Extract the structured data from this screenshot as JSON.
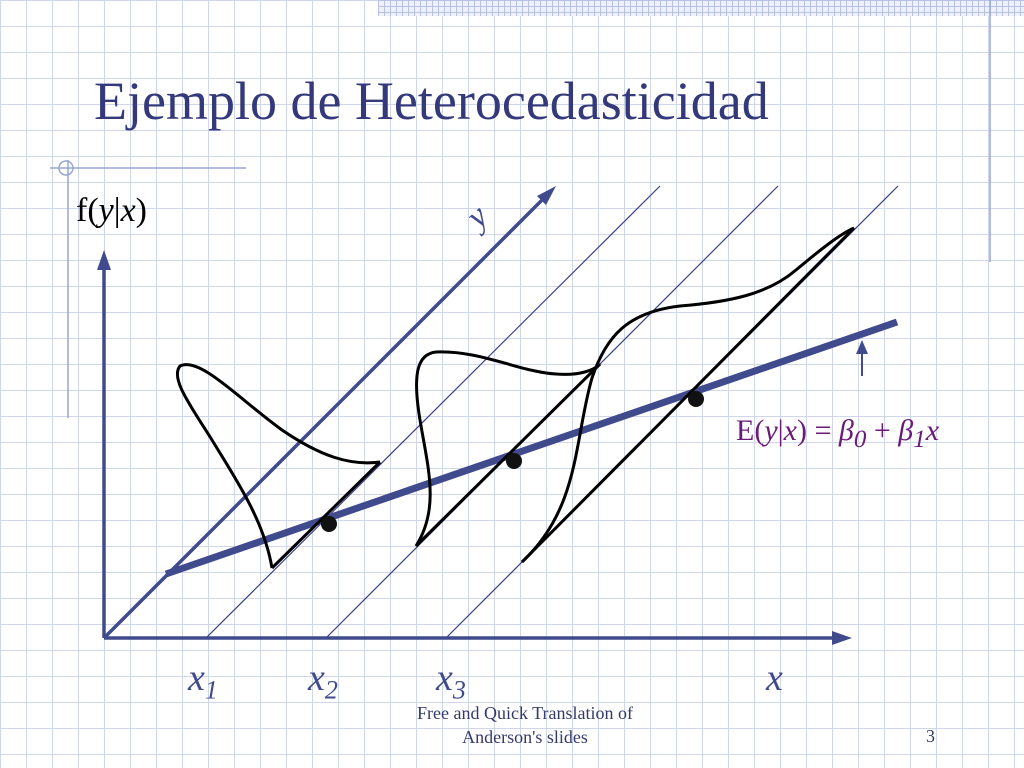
{
  "slide": {
    "title": "Ejemplo de Heterocedasticidad",
    "footer_line1": "Free and Quick Translation of",
    "footer_line2": "Anderson's slides",
    "page_number": "3"
  },
  "diagram": {
    "fy_label_pre": "f(",
    "fy_label_y": "y",
    "fy_label_bar": "|",
    "fy_label_x": "x",
    "fy_label_post": ")",
    "y_axis_label": "y",
    "x_axis_label": "x",
    "x_ticks": [
      {
        "name": "x",
        "sub": "1"
      },
      {
        "name": "x",
        "sub": "2"
      },
      {
        "name": "x",
        "sub": "3"
      }
    ],
    "regression_equation": {
      "lhs_pre": "E(",
      "lhs_y": "y",
      "lhs_bar": "|",
      "lhs_x": "x",
      "lhs_post": ") = ",
      "beta": "β",
      "sub0": "0",
      "plus": " + ",
      "sub1": "1",
      "var": "x"
    },
    "colors": {
      "axis": "#404b8e",
      "regression_line": "#404b8e",
      "curves": "#000000",
      "equation": "#6a1b78",
      "title": "#33397a"
    }
  }
}
